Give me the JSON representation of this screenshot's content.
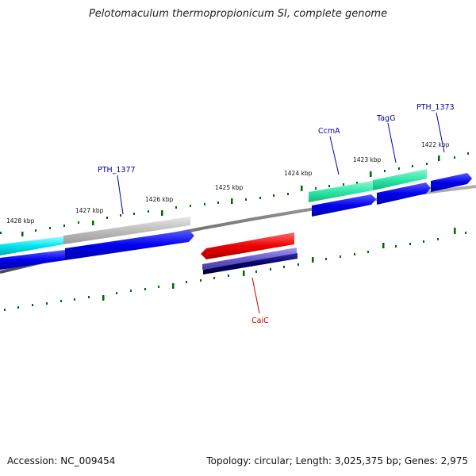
{
  "title": "Pelotomaculum thermopropionicum SI, complete genome",
  "footer": {
    "accession": "Accession: NC_009454",
    "summary": "Topology: circular; Length: 3,025,375 bp; Genes: 2,975"
  },
  "ruler_labels": [
    "1428 kbp",
    "1427 kbp",
    "1426 kbp",
    "1425 kbp",
    "1424 kbp",
    "1423 kbp",
    "1422 kbp"
  ],
  "gene_labels": [
    {
      "text": "PTH_1377",
      "color": "#0000aa"
    },
    {
      "text": "CcmA",
      "color": "#0000aa"
    },
    {
      "text": "TagG",
      "color": "#0000aa"
    },
    {
      "text": "PTH_1373",
      "color": "#0000aa"
    },
    {
      "text": "CaiC",
      "color": "#cc0000"
    }
  ],
  "colors": {
    "backbone": "#777777",
    "tick": "#006600",
    "cds_forward": "#0000ee",
    "cds_reverse_dark": "#000066",
    "gene_cyan": "#00e5ee",
    "gene_gray": "#bbbbbb",
    "gene_teal": "#2ee8a8",
    "gene_red": "#ee0000",
    "gene_slate": "#6a5acd"
  }
}
